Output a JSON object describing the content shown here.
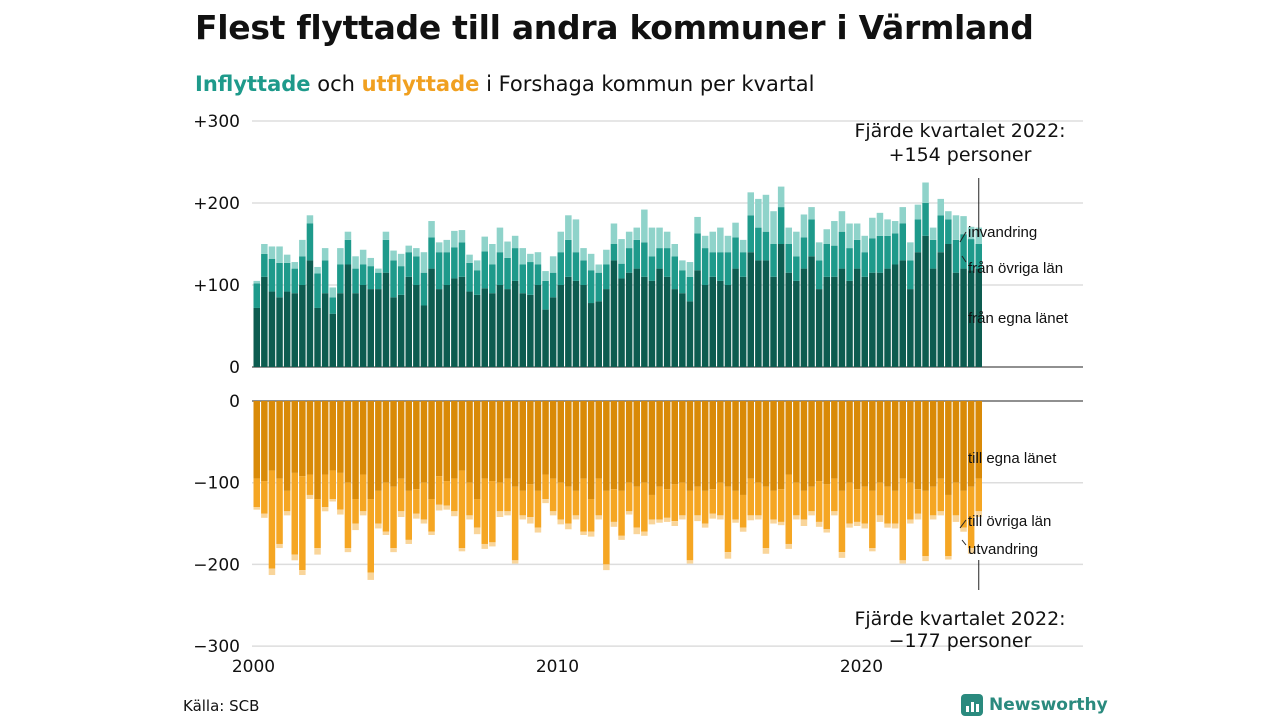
{
  "title": "Flest flyttade till andra kommuner i Värmland",
  "subtitle": {
    "in_label": "Inflyttade",
    "mid": " och ",
    "out_label": "utflyttade",
    "rest": " i Forshaga kommun per kvartal"
  },
  "source": "Källa: SCB",
  "brand": "Newsworthy",
  "chart_data": {
    "type": "bar",
    "colors": {
      "in_egna": "#0d5c50",
      "in_ovriga": "#1e9a8b",
      "in_invandring": "#8fd3ca",
      "ut_egna": "#d98a08",
      "ut_ovriga": "#f5a623",
      "ut_utvandring": "#f9d59a",
      "grid": "#dddddd",
      "axis": "#222222"
    },
    "y_ticks_top": [
      "+300",
      "+200",
      "+100",
      "0"
    ],
    "y_ticks_bottom": [
      "0",
      "−100",
      "−200",
      "−300"
    ],
    "x_ticks": [
      "2000",
      "2010",
      "2020"
    ],
    "annotation_top": [
      "Fjärde kvartalet 2022:",
      "+154 personer"
    ],
    "annotation_bottom": [
      "Fjärde kvartalet 2022:",
      "−177 personer"
    ],
    "series_in": [
      {
        "name": "invandring",
        "values": [
          3,
          12,
          15,
          20,
          10,
          8,
          20,
          10,
          8,
          15,
          12,
          20,
          10,
          15,
          18,
          10,
          5,
          10,
          12,
          15,
          8,
          10,
          25,
          20,
          12,
          15,
          20,
          15,
          10,
          12,
          18,
          25,
          30,
          20,
          15,
          20,
          10,
          15,
          12,
          20,
          25,
          30,
          40,
          15,
          20,
          10,
          18,
          25,
          30,
          20,
          15,
          40,
          35,
          25,
          20,
          15,
          12,
          18,
          20,
          15,
          25,
          30,
          20,
          18,
          15,
          28,
          35,
          45,
          40,
          25,
          20,
          30,
          28,
          15,
          22,
          18,
          30,
          25,
          30,
          20,
          20,
          25,
          28,
          20,
          15,
          20,
          22,
          18,
          25,
          15,
          20,
          10,
          30,
          22,
          15,
          20
        ]
      },
      {
        "name": "från övriga län",
        "values": [
          30,
          28,
          40,
          42,
          35,
          30,
          35,
          45,
          42,
          40,
          20,
          35,
          30,
          30,
          25,
          28,
          20,
          40,
          45,
          35,
          30,
          35,
          40,
          38,
          45,
          40,
          38,
          42,
          35,
          30,
          45,
          35,
          40,
          38,
          40,
          35,
          40,
          25,
          35,
          30,
          40,
          45,
          35,
          30,
          40,
          35,
          30,
          20,
          18,
          30,
          35,
          42,
          30,
          25,
          35,
          40,
          28,
          30,
          45,
          45,
          30,
          35,
          40,
          38,
          30,
          45,
          40,
          35,
          40,
          45,
          35,
          30,
          38,
          45,
          35,
          40,
          38,
          45,
          40,
          35,
          30,
          42,
          45,
          40,
          38,
          45,
          35,
          40,
          40,
          35,
          45,
          30,
          40,
          42,
          38,
          30
        ]
      },
      {
        "name": "från egna länet",
        "values": [
          72,
          110,
          92,
          85,
          92,
          90,
          100,
          130,
          72,
          90,
          65,
          90,
          125,
          90,
          100,
          95,
          95,
          115,
          85,
          88,
          110,
          100,
          75,
          120,
          95,
          100,
          108,
          110,
          92,
          88,
          96,
          90,
          100,
          95,
          105,
          90,
          88,
          100,
          70,
          85,
          100,
          110,
          105,
          100,
          78,
          80,
          95,
          130,
          108,
          115,
          120,
          110,
          105,
          120,
          110,
          95,
          90,
          80,
          118,
          100,
          110,
          105,
          100,
          120,
          110,
          140,
          130,
          130,
          110,
          150,
          115,
          105,
          120,
          135,
          95,
          110,
          110,
          120,
          105,
          120,
          110,
          115,
          115,
          120,
          125,
          130,
          95,
          140,
          160,
          120,
          140,
          150,
          115,
          120,
          118,
          120
        ]
      }
    ],
    "series_out": [
      {
        "name": "till egna länet",
        "values": [
          95,
          98,
          85,
          95,
          110,
          88,
          92,
          90,
          120,
          90,
          85,
          88,
          100,
          120,
          90,
          120,
          110,
          100,
          105,
          95,
          110,
          108,
          100,
          120,
          92,
          98,
          95,
          85,
          100,
          120,
          95,
          98,
          100,
          95,
          105,
          110,
          102,
          110,
          90,
          95,
          100,
          105,
          110,
          95,
          120,
          95,
          110,
          108,
          110,
          100,
          105,
          100,
          115,
          105,
          108,
          102,
          100,
          110,
          105,
          110,
          108,
          100,
          105,
          110,
          115,
          95,
          100,
          105,
          110,
          108,
          90,
          100,
          110,
          105,
          98,
          102,
          95,
          110,
          100,
          108,
          105,
          110,
          100,
          105,
          110,
          95,
          100,
          108,
          110,
          105,
          95,
          115,
          100,
          110,
          105,
          95
        ]
      },
      {
        "name": "till övriga län",
        "values": [
          35,
          40,
          120,
          80,
          25,
          100,
          115,
          25,
          60,
          40,
          35,
          45,
          80,
          30,
          45,
          90,
          40,
          60,
          75,
          40,
          60,
          30,
          45,
          40,
          35,
          30,
          40,
          95,
          40,
          35,
          80,
          75,
          35,
          40,
          90,
          30,
          40,
          45,
          30,
          40,
          45,
          45,
          30,
          65,
          40,
          45,
          90,
          40,
          55,
          35,
          50,
          60,
          30,
          40,
          35,
          45,
          40,
          85,
          35,
          40,
          30,
          40,
          80,
          35,
          40,
          45,
          40,
          75,
          35,
          40,
          85,
          40,
          35,
          30,
          50,
          55,
          40,
          75,
          50,
          40,
          45,
          70,
          40,
          45,
          40,
          100,
          45,
          30,
          80,
          35,
          40,
          75,
          40,
          45,
          75,
          40
        ]
      },
      {
        "name": "utvandring",
        "values": [
          3,
          5,
          8,
          5,
          5,
          7,
          6,
          5,
          8,
          5,
          3,
          6,
          5,
          8,
          5,
          9,
          6,
          4,
          5,
          7,
          5,
          6,
          5,
          4,
          7,
          5,
          6,
          4,
          5,
          8,
          6,
          5,
          7,
          5,
          4,
          5,
          8,
          6,
          5,
          5,
          6,
          7,
          5,
          4,
          6,
          5,
          7,
          6,
          5,
          4,
          8,
          5,
          6,
          4,
          5,
          6,
          5,
          4,
          7,
          5,
          6,
          5,
          8,
          4,
          5,
          6,
          5,
          7,
          5,
          4,
          6,
          5,
          8,
          5,
          6,
          4,
          5,
          7,
          5,
          5,
          6,
          4,
          8,
          5,
          6,
          4,
          5,
          7,
          6,
          5,
          5,
          4,
          8,
          5,
          7,
          7
        ]
      }
    ],
    "series_labels_in": [
      "invandring",
      "från övriga län",
      "från egna länet"
    ],
    "series_labels_out": [
      "till egna länet",
      "till övriga län",
      "utvandring"
    ]
  }
}
